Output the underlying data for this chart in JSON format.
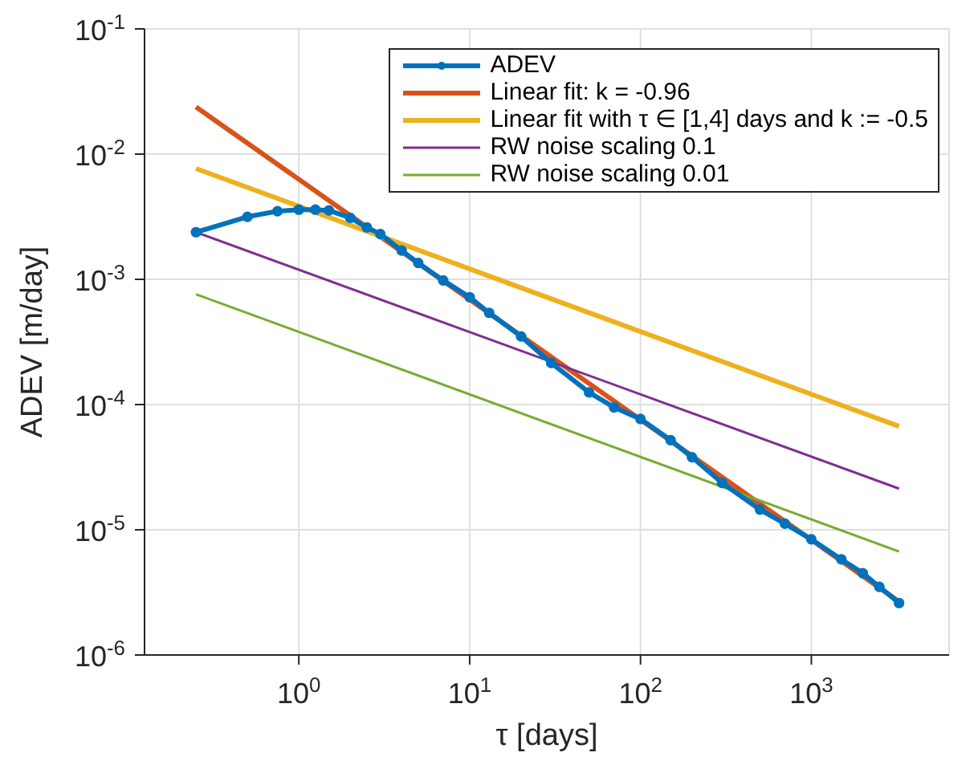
{
  "chart_data": {
    "type": "line",
    "xlabel": "τ [days]",
    "ylabel": "ADEV [m/day]",
    "log": "xy",
    "grid": true,
    "legend": "top right",
    "xlim": [
      0.125,
      6400
    ],
    "xticks": [
      {
        "value": 1,
        "label": "10$^{0}$"
      },
      {
        "value": 10,
        "label": "10$^{1}$"
      },
      {
        "value": 100,
        "label": "10$^{2}$"
      },
      {
        "value": 1000,
        "label": "10$^{3}$"
      }
    ],
    "ylim": [
      1e-06,
      0.1
    ],
    "yticks": [
      {
        "value": 1e-06,
        "label": "10$^{-6}$"
      },
      {
        "value": 1e-05,
        "label": "10$^{-5}$"
      },
      {
        "value": 0.0001,
        "label": "10$^{-4}$"
      },
      {
        "value": 0.001,
        "label": "10$^{-3}$"
      },
      {
        "value": 0.01,
        "label": "10$^{-2}$"
      },
      {
        "value": 0.1,
        "label": "10$^{-1}$"
      }
    ],
    "series": [
      {
        "name": "ADEV",
        "color": "#0072bd",
        "marker": "circle",
        "x": [
          0.25,
          0.5,
          0.75,
          1,
          1.25,
          1.5,
          2,
          2.5,
          3,
          4,
          5,
          7,
          10,
          13,
          20,
          30,
          50,
          70,
          100,
          150,
          200,
          300,
          500,
          700,
          1000,
          1500,
          2000,
          2500,
          3260
        ],
        "values": [
          0.00238,
          0.00316,
          0.0035,
          0.0036,
          0.0036,
          0.00355,
          0.0031,
          0.0026,
          0.0023,
          0.0017,
          0.00135,
          0.00098,
          0.00072,
          0.00054,
          0.00035,
          0.000215,
          0.000125,
          9.5e-05,
          7.67e-05,
          5.2e-05,
          3.8e-05,
          2.37e-05,
          1.45e-05,
          1.12e-05,
          8.4e-06,
          5.8e-06,
          4.5e-06,
          3.5e-06,
          2.6e-06
        ]
      },
      {
        "name": "Linear fit: k = -0.96",
        "color": "#d95319",
        "marker": "none",
        "x": [
          0.25,
          3260
        ],
        "values": [
          0.0238,
          2.67e-06
        ]
      },
      {
        "name": "Linear fit with τ ∈ [1,4] days and k := -0.5",
        "color": "#edb120",
        "marker": "none",
        "x": [
          0.25,
          3260
        ],
        "values": [
          0.00767,
          6.7e-05
        ]
      },
      {
        "name": "RW noise scaling 0.1",
        "color": "#7e2f8e",
        "marker": "none",
        "x": [
          0.25,
          3260
        ],
        "values": [
          0.00238,
          2.13e-05
        ]
      },
      {
        "name": "RW noise scaling 0.01",
        "color": "#77ac30",
        "marker": "none",
        "x": [
          0.25,
          3260
        ],
        "values": [
          0.00076,
          6.7e-06
        ]
      }
    ]
  }
}
